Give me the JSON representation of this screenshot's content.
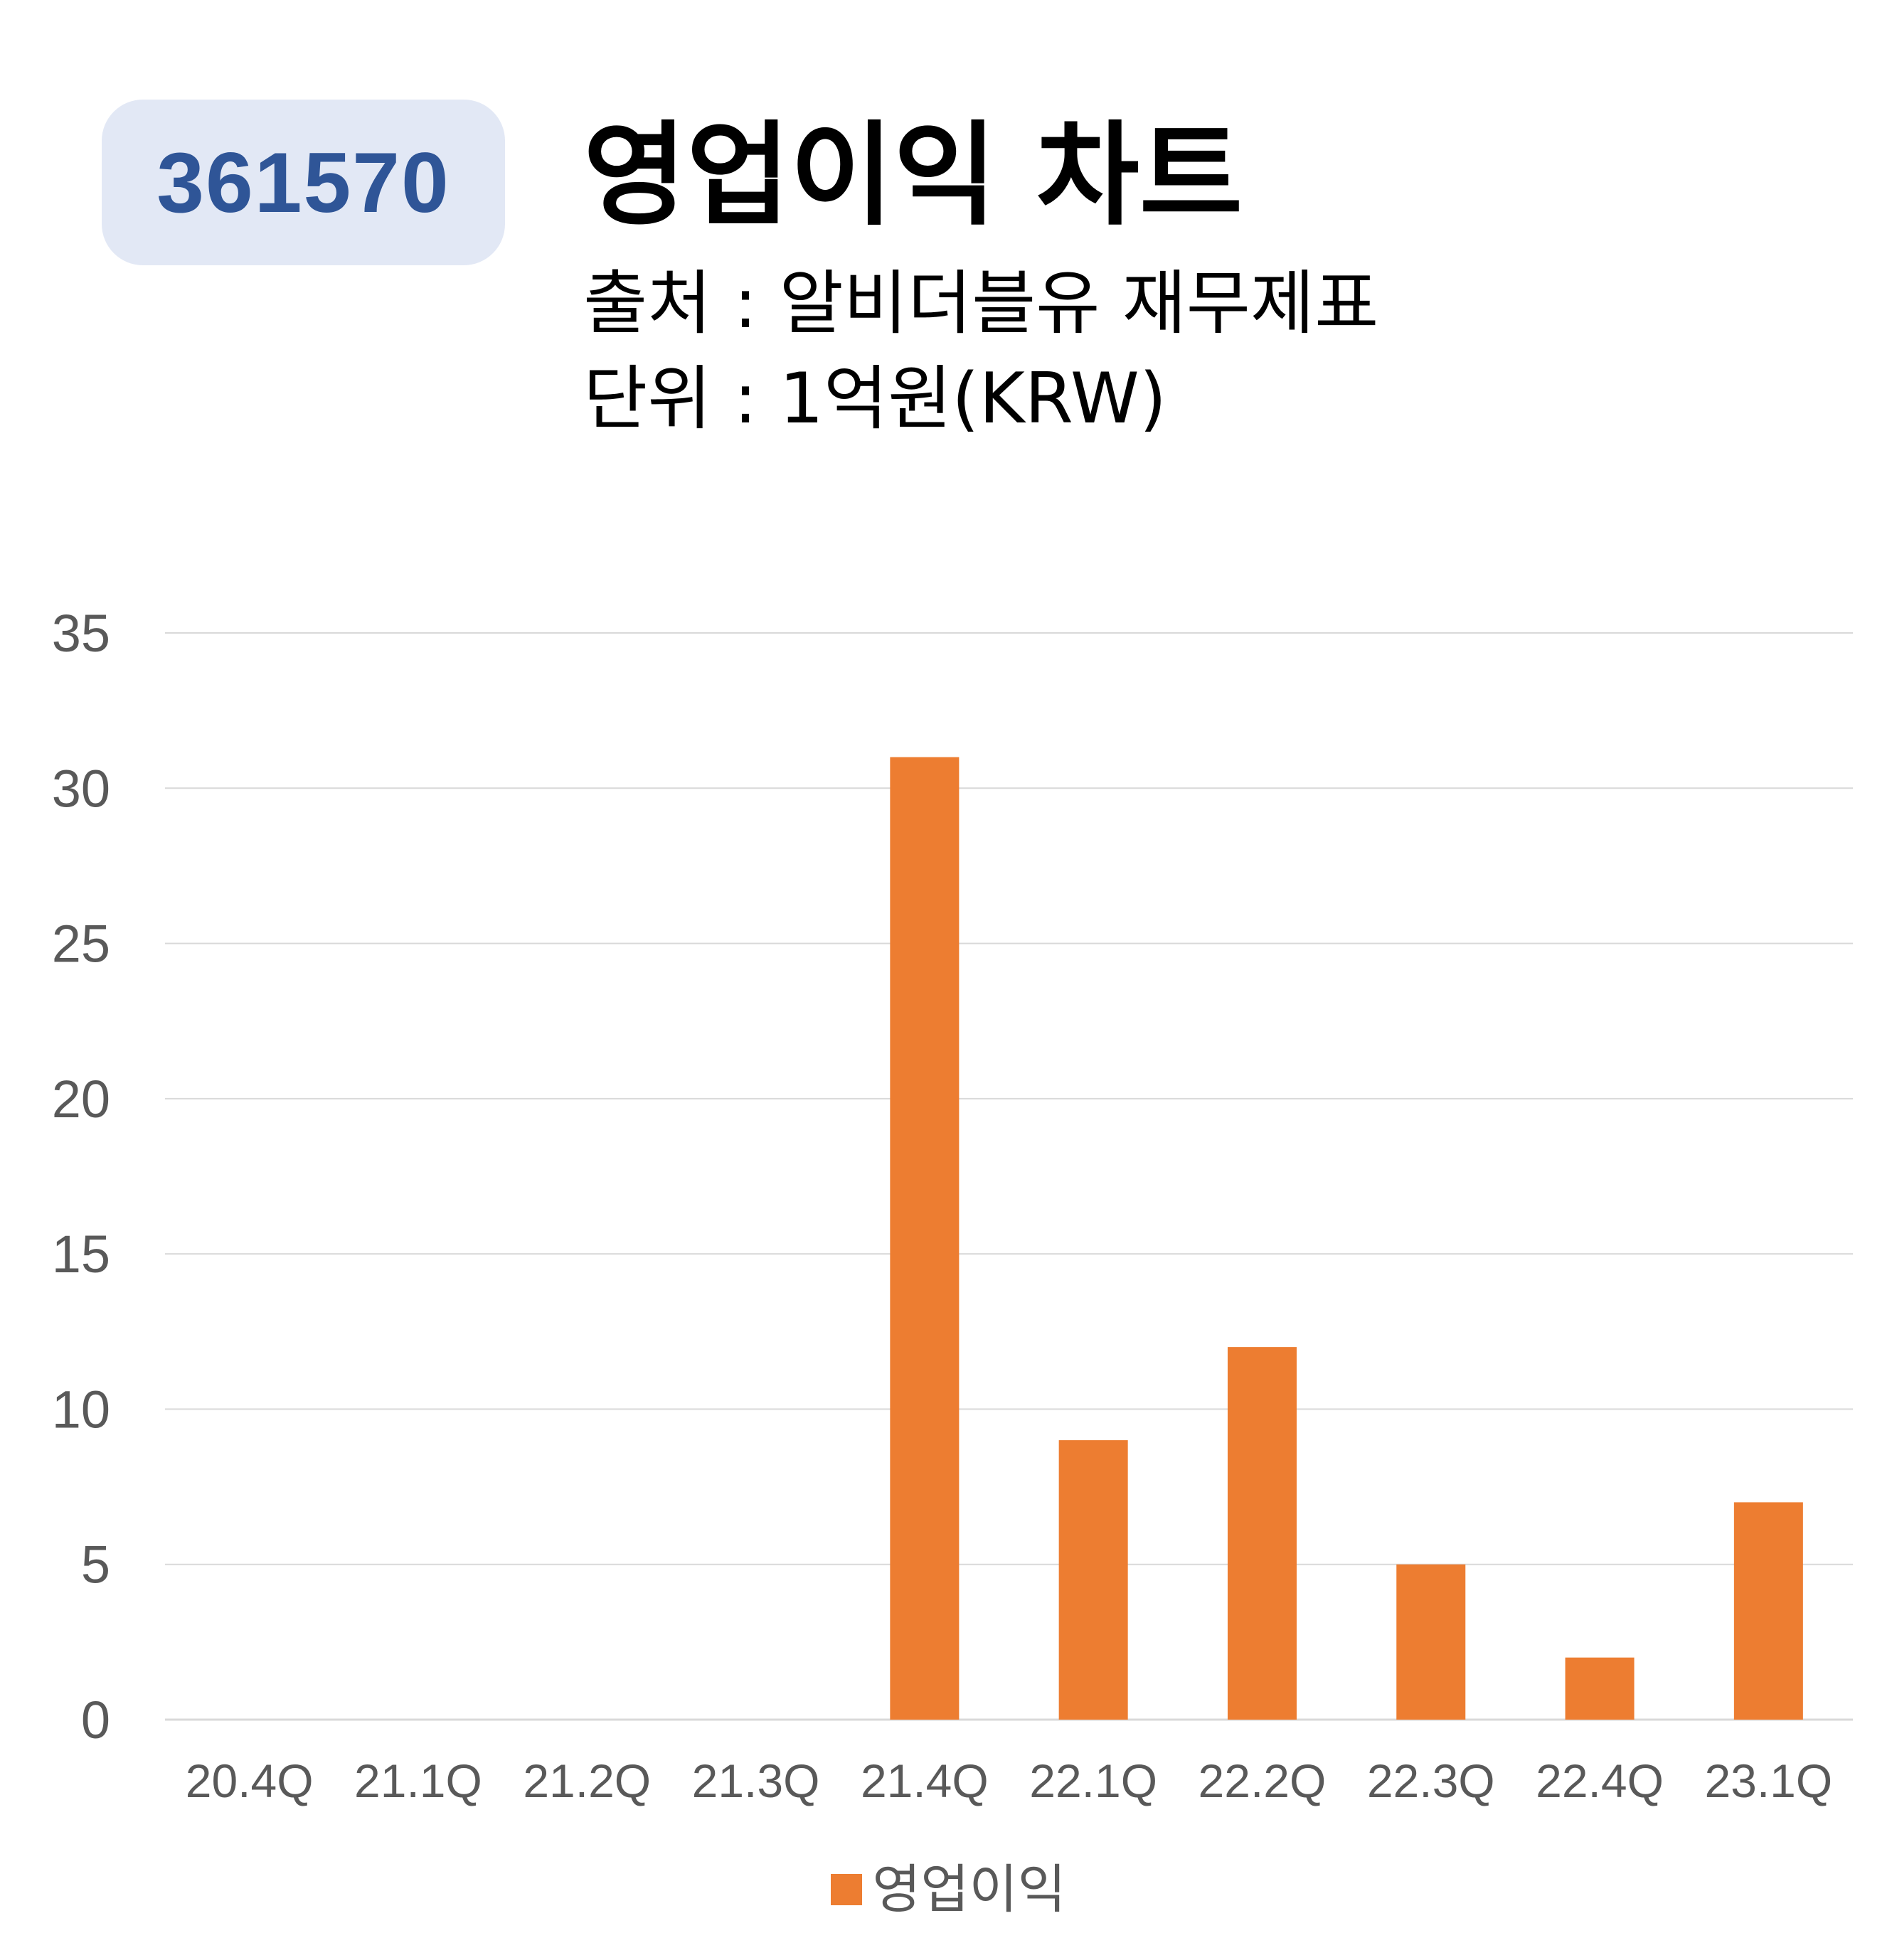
{
  "ticker": "361570",
  "title": "영업이익 차트",
  "source": "출처 : 알비더블유 재무제표",
  "unit": "단위 : 1억원(KRW)",
  "colors": {
    "bar": "#ed7d31",
    "badge_bg": "#e2e8f5",
    "badge_text": "#2f5597",
    "grid": "#d9d9d9",
    "axis_text": "#595959"
  },
  "chart_data": {
    "type": "bar",
    "categories": [
      "20.4Q",
      "21.1Q",
      "21.2Q",
      "21.3Q",
      "21.4Q",
      "22.1Q",
      "22.2Q",
      "22.3Q",
      "22.4Q",
      "23.1Q"
    ],
    "series": [
      {
        "name": "영업이익",
        "values": [
          0,
          0,
          0,
          0,
          31,
          9,
          12,
          5,
          2,
          7
        ]
      }
    ],
    "ylim": [
      0,
      35
    ],
    "yticks": [
      0,
      5,
      10,
      15,
      20,
      25,
      30,
      35
    ],
    "grid": true,
    "legend": "bottom-center"
  }
}
